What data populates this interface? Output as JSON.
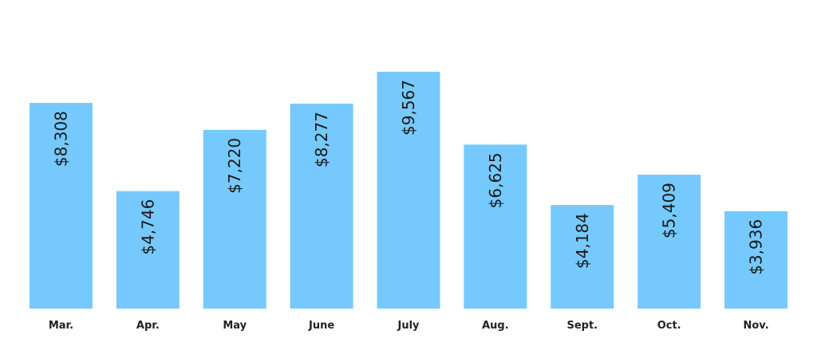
{
  "chart_data": {
    "type": "bar",
    "categories": [
      "Mar.",
      "Apr.",
      "May",
      "June",
      "July",
      "Aug.",
      "Sept.",
      "Oct.",
      "Nov."
    ],
    "values": [
      8308,
      4746,
      7220,
      8277,
      9567,
      6625,
      4184,
      5409,
      3936
    ],
    "value_labels": [
      "$8,308",
      "$4,746",
      "$7,220",
      "$8,277",
      "$9,567",
      "$6,625",
      "$4,184",
      "$5,409",
      "$3,936"
    ],
    "color": "#75c9fd"
  }
}
